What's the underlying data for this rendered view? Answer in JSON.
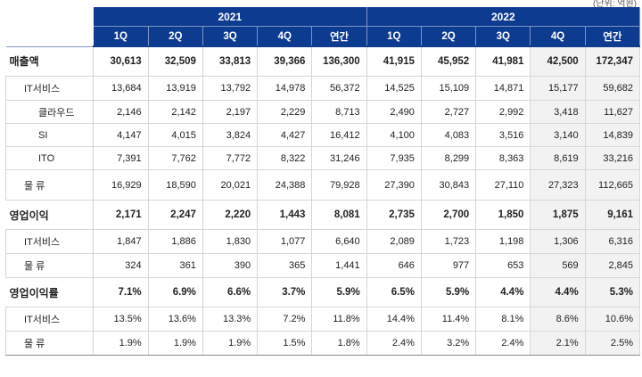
{
  "unit_note": "(단위: 억원)",
  "years": [
    "2021",
    "2022"
  ],
  "col_headers": [
    "1Q",
    "2Q",
    "3Q",
    "4Q",
    "연간",
    "1Q",
    "2Q",
    "3Q",
    "4Q",
    "연간"
  ],
  "rows": [
    {
      "kind": "main",
      "label": "매출액",
      "values": [
        "30,613",
        "32,509",
        "33,813",
        "39,366",
        "136,300",
        "41,915",
        "45,952",
        "41,981",
        "42,500",
        "172,347"
      ]
    },
    {
      "kind": "sub",
      "label": "IT서비스",
      "values": [
        "13,684",
        "13,919",
        "13,792",
        "14,978",
        "56,372",
        "14,525",
        "15,109",
        "14,871",
        "15,177",
        "59,682"
      ]
    },
    {
      "kind": "subsub",
      "label": "클라우드",
      "values": [
        "2,146",
        "2,142",
        "2,197",
        "2,229",
        "8,713",
        "2,490",
        "2,727",
        "2,992",
        "3,418",
        "11,627"
      ]
    },
    {
      "kind": "subsub",
      "label": "SI",
      "values": [
        "4,147",
        "4,015",
        "3,824",
        "4,427",
        "16,412",
        "4,100",
        "4,083",
        "3,516",
        "3,140",
        "14,839"
      ]
    },
    {
      "kind": "subsub",
      "label": "ITO",
      "values": [
        "7,391",
        "7,762",
        "7,772",
        "8,322",
        "31,246",
        "7,935",
        "8,299",
        "8,363",
        "8,619",
        "33,216"
      ]
    },
    {
      "kind": "sub",
      "label": "물 류",
      "values": [
        "16,929",
        "18,590",
        "20,021",
        "24,388",
        "79,928",
        "27,390",
        "30,843",
        "27,110",
        "27,323",
        "112,665"
      ]
    },
    {
      "kind": "main",
      "label": "영업이익",
      "values": [
        "2,171",
        "2,247",
        "2,220",
        "1,443",
        "8,081",
        "2,735",
        "2,700",
        "1,850",
        "1,875",
        "9,161"
      ]
    },
    {
      "kind": "sub",
      "label": "IT서비스",
      "values": [
        "1,847",
        "1,886",
        "1,830",
        "1,077",
        "6,640",
        "2,089",
        "1,723",
        "1,198",
        "1,306",
        "6,316"
      ]
    },
    {
      "kind": "sub",
      "label": "물 류",
      "values": [
        "324",
        "361",
        "390",
        "365",
        "1,441",
        "646",
        "977",
        "653",
        "569",
        "2,845"
      ]
    },
    {
      "kind": "main",
      "label": "영업이익률",
      "values": [
        "7.1%",
        "6.9%",
        "6.6%",
        "3.7%",
        "5.9%",
        "6.5%",
        "5.9%",
        "4.4%",
        "4.4%",
        "5.3%"
      ]
    },
    {
      "kind": "sub",
      "label": "IT서비스",
      "values": [
        "13.5%",
        "13.6%",
        "13.3%",
        "7.2%",
        "11.8%",
        "14.4%",
        "11.4%",
        "8.1%",
        "8.6%",
        "10.6%"
      ]
    },
    {
      "kind": "sub",
      "label": "물 류",
      "values": [
        "1.9%",
        "1.9%",
        "1.9%",
        "1.5%",
        "1.8%",
        "2.4%",
        "3.2%",
        "2.4%",
        "2.1%",
        "2.5%"
      ]
    }
  ],
  "colors": {
    "header_bg": "#0d3b8f",
    "header_text": "#ffffff",
    "shade_bg": "#f2f2f2"
  }
}
